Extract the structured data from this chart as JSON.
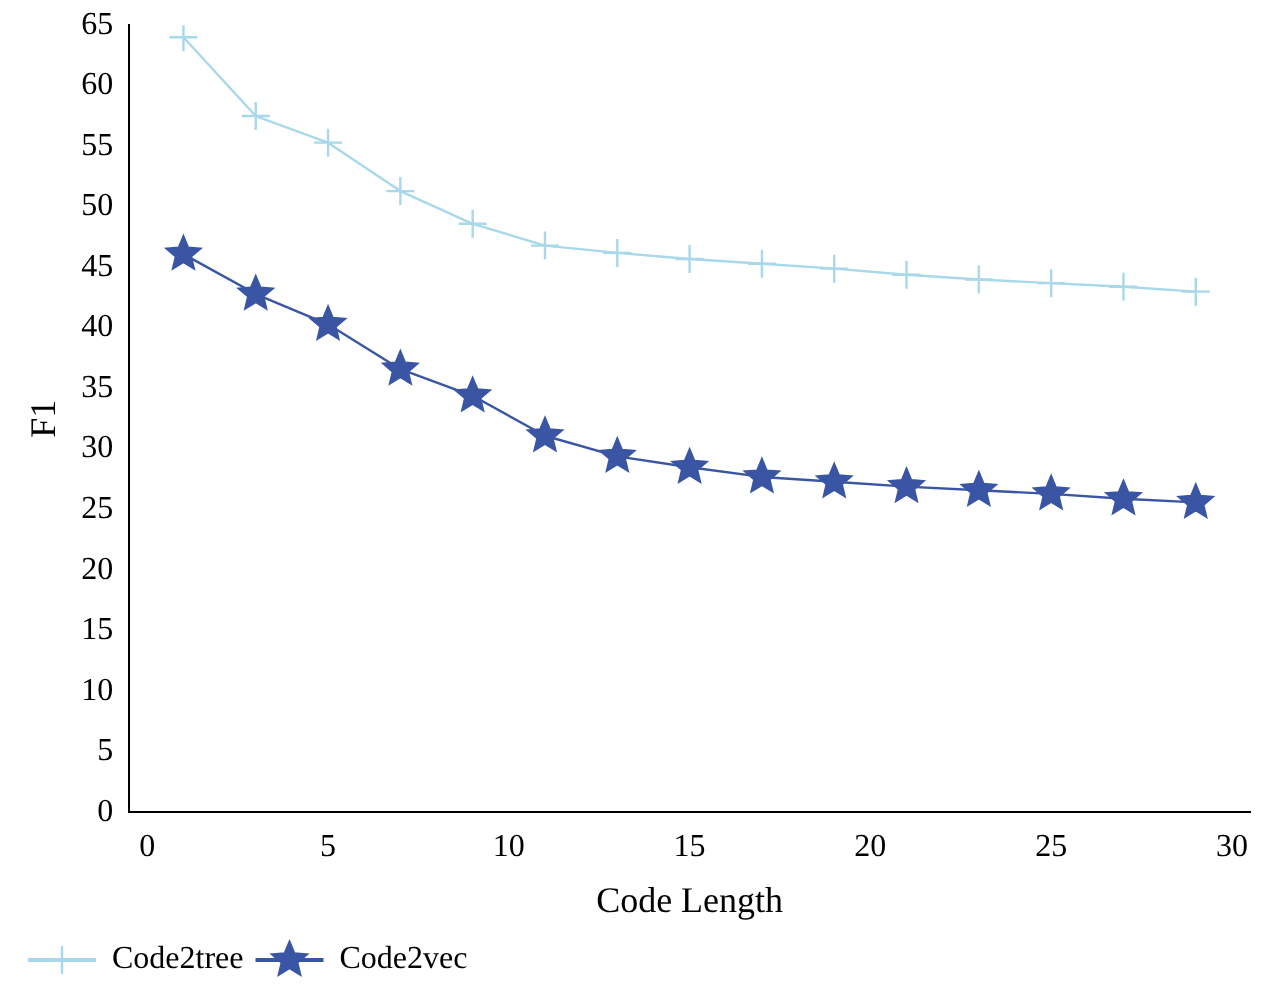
{
  "chart_data": {
    "type": "line",
    "xlabel": "Code Length",
    "ylabel": "F1",
    "x": [
      1,
      3,
      5,
      7,
      9,
      11,
      13,
      15,
      17,
      19,
      21,
      23,
      25,
      27,
      29
    ],
    "xlim": [
      -0.5,
      30.5
    ],
    "xticks": [
      0,
      5,
      10,
      15,
      20,
      25,
      30
    ],
    "ylim": [
      0,
      65
    ],
    "yticks": [
      0,
      5,
      10,
      15,
      20,
      25,
      30,
      35,
      40,
      45,
      50,
      55,
      60,
      65
    ],
    "grid": false,
    "legend": "bottom left",
    "line_style": "solid",
    "series": [
      {
        "name": "Code2tree",
        "color": "#a8d8ea",
        "marker": "cross",
        "values": [
          64,
          57.5,
          55.3,
          51.3,
          48.6,
          46.8,
          46.2,
          45.7,
          45.3,
          44.9,
          44.4,
          44.0,
          43.7,
          43.4,
          43.0
        ]
      },
      {
        "name": "Code2vec",
        "color": "#3a55a4",
        "marker": "star",
        "values": [
          46.1,
          42.8,
          40.3,
          36.6,
          34.4,
          31.1,
          29.4,
          28.5,
          27.7,
          27.3,
          26.9,
          26.6,
          26.3,
          25.9,
          25.6
        ]
      }
    ]
  }
}
